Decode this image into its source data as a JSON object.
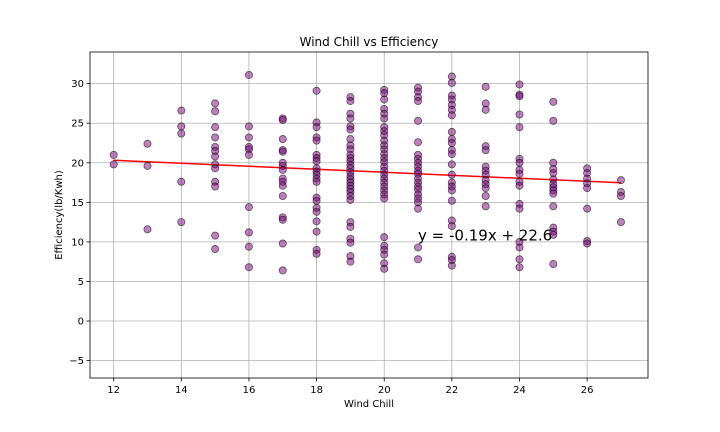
{
  "chart_data": {
    "type": "scatter",
    "title": "Wind Chill vs Efficiency",
    "xlabel": "Wind Chill",
    "ylabel": "Efficiency(lb/Kwh)",
    "xlim": [
      11.3,
      27.8
    ],
    "ylim": [
      -7.2,
      34.0
    ],
    "xticks": [
      12,
      14,
      16,
      18,
      20,
      22,
      24,
      26
    ],
    "yticks": [
      -5,
      0,
      5,
      10,
      15,
      20,
      25,
      30
    ],
    "grid": true,
    "marker_color": "#800080",
    "line_color": "#ff0000",
    "annotation": {
      "text": "y = -0.19x + 22.6",
      "x": 21,
      "y": 10.2
    },
    "regression": {
      "slope": -0.19,
      "intercept": 22.6,
      "x_range": [
        12,
        27
      ]
    },
    "points": [
      [
        12,
        21.0
      ],
      [
        12,
        19.8
      ],
      [
        13,
        22.4
      ],
      [
        13,
        19.6
      ],
      [
        13,
        11.6
      ],
      [
        14,
        26.6
      ],
      [
        14,
        24.6
      ],
      [
        14,
        23.7
      ],
      [
        14,
        17.6
      ],
      [
        14,
        12.5
      ],
      [
        15,
        27.5
      ],
      [
        15,
        26.5
      ],
      [
        15,
        24.5
      ],
      [
        15,
        23.2
      ],
      [
        15,
        22.0
      ],
      [
        15,
        21.5
      ],
      [
        15,
        20.8
      ],
      [
        15,
        19.8
      ],
      [
        15,
        19.3
      ],
      [
        15,
        17.6
      ],
      [
        15,
        17.0
      ],
      [
        15,
        10.8
      ],
      [
        15,
        9.1
      ],
      [
        16,
        31.1
      ],
      [
        16,
        24.6
      ],
      [
        16,
        23.2
      ],
      [
        16,
        22.0
      ],
      [
        16,
        21.7
      ],
      [
        16,
        21.0
      ],
      [
        16,
        14.4
      ],
      [
        16,
        11.2
      ],
      [
        16,
        9.4
      ],
      [
        16,
        6.8
      ],
      [
        17,
        25.6
      ],
      [
        17,
        25.4
      ],
      [
        17,
        23.0
      ],
      [
        17,
        21.6
      ],
      [
        17,
        21.4
      ],
      [
        17,
        20.0
      ],
      [
        17,
        19.6
      ],
      [
        17,
        19.1
      ],
      [
        17,
        18.0
      ],
      [
        17,
        17.6
      ],
      [
        17,
        17.1
      ],
      [
        17,
        15.8
      ],
      [
        17,
        13.1
      ],
      [
        17,
        12.8
      ],
      [
        17,
        9.8
      ],
      [
        17,
        6.4
      ],
      [
        18,
        29.1
      ],
      [
        18,
        25.1
      ],
      [
        18,
        24.5
      ],
      [
        18,
        23.2
      ],
      [
        18,
        22.8
      ],
      [
        18,
        21.0
      ],
      [
        18,
        20.6
      ],
      [
        18,
        20.2
      ],
      [
        18,
        19.3
      ],
      [
        18,
        18.9
      ],
      [
        18,
        18.5
      ],
      [
        18,
        18.0
      ],
      [
        18,
        17.6
      ],
      [
        18,
        15.6
      ],
      [
        18,
        15.2
      ],
      [
        18,
        14.3
      ],
      [
        18,
        13.8
      ],
      [
        18,
        12.6
      ],
      [
        18,
        11.3
      ],
      [
        18,
        9.0
      ],
      [
        18,
        8.5
      ],
      [
        19,
        28.3
      ],
      [
        19,
        27.8
      ],
      [
        19,
        26.2
      ],
      [
        19,
        25.6
      ],
      [
        19,
        24.6
      ],
      [
        19,
        24.2
      ],
      [
        19,
        23.0
      ],
      [
        19,
        22.2
      ],
      [
        19,
        21.7
      ],
      [
        19,
        21.0
      ],
      [
        19,
        20.6
      ],
      [
        19,
        20.2
      ],
      [
        19,
        19.7
      ],
      [
        19,
        19.3
      ],
      [
        19,
        18.8
      ],
      [
        19,
        18.3
      ],
      [
        19,
        17.9
      ],
      [
        19,
        17.5
      ],
      [
        19,
        17.1
      ],
      [
        19,
        16.7
      ],
      [
        19,
        16.3
      ],
      [
        19,
        15.8
      ],
      [
        19,
        15.3
      ],
      [
        19,
        12.5
      ],
      [
        19,
        11.9
      ],
      [
        19,
        10.4
      ],
      [
        19,
        9.9
      ],
      [
        19,
        8.2
      ],
      [
        19,
        7.5
      ],
      [
        20,
        29.2
      ],
      [
        20,
        28.8
      ],
      [
        20,
        28.0
      ],
      [
        20,
        26.8
      ],
      [
        20,
        26.2
      ],
      [
        20,
        25.6
      ],
      [
        20,
        24.5
      ],
      [
        20,
        24.0
      ],
      [
        20,
        23.5
      ],
      [
        20,
        22.8
      ],
      [
        20,
        22.2
      ],
      [
        20,
        21.7
      ],
      [
        20,
        21.1
      ],
      [
        20,
        20.6
      ],
      [
        20,
        20.1
      ],
      [
        20,
        19.5
      ],
      [
        20,
        19.0
      ],
      [
        20,
        18.5
      ],
      [
        20,
        18.0
      ],
      [
        20,
        17.5
      ],
      [
        20,
        17.0
      ],
      [
        20,
        16.5
      ],
      [
        20,
        16.0
      ],
      [
        20,
        15.5
      ],
      [
        20,
        10.6
      ],
      [
        20,
        9.5
      ],
      [
        20,
        9.0
      ],
      [
        20,
        8.4
      ],
      [
        20,
        7.3
      ],
      [
        20,
        6.6
      ],
      [
        21,
        29.5
      ],
      [
        21,
        29.0
      ],
      [
        21,
        28.3
      ],
      [
        21,
        27.8
      ],
      [
        21,
        25.3
      ],
      [
        21,
        22.6
      ],
      [
        21,
        21.0
      ],
      [
        21,
        20.5
      ],
      [
        21,
        20.0
      ],
      [
        21,
        19.5
      ],
      [
        21,
        19.0
      ],
      [
        21,
        18.6
      ],
      [
        21,
        18.0
      ],
      [
        21,
        17.5
      ],
      [
        21,
        17.0
      ],
      [
        21,
        16.6
      ],
      [
        21,
        16.0
      ],
      [
        21,
        15.5
      ],
      [
        21,
        15.0
      ],
      [
        21,
        14.2
      ],
      [
        21,
        9.3
      ],
      [
        21,
        7.8
      ],
      [
        22,
        30.9
      ],
      [
        22,
        30.1
      ],
      [
        22,
        28.5
      ],
      [
        22,
        28.0
      ],
      [
        22,
        27.3
      ],
      [
        22,
        26.7
      ],
      [
        22,
        26.0
      ],
      [
        22,
        23.9
      ],
      [
        22,
        23.0
      ],
      [
        22,
        22.5
      ],
      [
        22,
        21.6
      ],
      [
        22,
        21.1
      ],
      [
        22,
        19.8
      ],
      [
        22,
        18.5
      ],
      [
        22,
        17.5
      ],
      [
        22,
        17.0
      ],
      [
        22,
        16.5
      ],
      [
        22,
        15.2
      ],
      [
        22,
        12.7
      ],
      [
        22,
        12.0
      ],
      [
        22,
        8.1
      ],
      [
        22,
        7.7
      ],
      [
        22,
        7.0
      ],
      [
        23,
        29.6
      ],
      [
        23,
        27.5
      ],
      [
        23,
        26.7
      ],
      [
        23,
        22.1
      ],
      [
        23,
        21.6
      ],
      [
        23,
        19.5
      ],
      [
        23,
        19.0
      ],
      [
        23,
        18.5
      ],
      [
        23,
        17.8
      ],
      [
        23,
        17.3
      ],
      [
        23,
        16.8
      ],
      [
        23,
        15.8
      ],
      [
        23,
        14.5
      ],
      [
        24,
        29.9
      ],
      [
        24,
        28.6
      ],
      [
        24,
        28.4
      ],
      [
        24,
        26.1
      ],
      [
        24,
        24.5
      ],
      [
        24,
        20.5
      ],
      [
        24,
        20.0
      ],
      [
        24,
        19.1
      ],
      [
        24,
        18.6
      ],
      [
        24,
        17.6
      ],
      [
        24,
        17.1
      ],
      [
        24,
        14.8
      ],
      [
        24,
        14.2
      ],
      [
        24,
        10.0
      ],
      [
        24,
        9.3
      ],
      [
        24,
        7.8
      ],
      [
        24,
        6.8
      ],
      [
        25,
        27.7
      ],
      [
        25,
        25.3
      ],
      [
        25,
        20.0
      ],
      [
        25,
        19.2
      ],
      [
        25,
        18.7
      ],
      [
        25,
        17.9
      ],
      [
        25,
        17.3
      ],
      [
        25,
        16.9
      ],
      [
        25,
        16.5
      ],
      [
        25,
        16.1
      ],
      [
        25,
        14.5
      ],
      [
        25,
        11.8
      ],
      [
        25,
        11.3
      ],
      [
        25,
        10.9
      ],
      [
        25,
        7.2
      ],
      [
        26,
        19.3
      ],
      [
        26,
        18.7
      ],
      [
        26,
        18.0
      ],
      [
        26,
        17.4
      ],
      [
        26,
        16.8
      ],
      [
        26,
        14.2
      ],
      [
        26,
        10.1
      ],
      [
        26,
        9.8
      ],
      [
        27,
        17.8
      ],
      [
        27,
        16.3
      ],
      [
        27,
        15.8
      ],
      [
        27,
        12.5
      ]
    ]
  }
}
